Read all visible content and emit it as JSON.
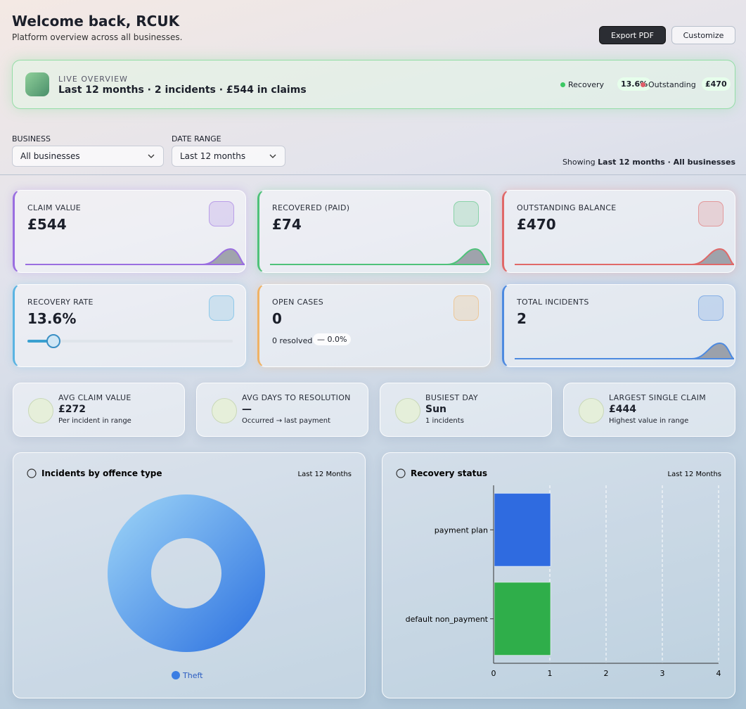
{
  "header": {
    "title": "Welcome back, RCUK",
    "subtitle": "Platform overview across all businesses.",
    "buttons": [
      "Export PDF",
      "Customize"
    ]
  },
  "overview": {
    "label": "LIVE OVERVIEW",
    "summary": "Last 12 months · 2 incidents · £544 in claims",
    "badges": [
      {
        "label": "Recovery",
        "value": "13.6%"
      },
      {
        "label": "Outstanding",
        "value": "£470"
      }
    ]
  },
  "filters": {
    "fields": [
      {
        "label": "BUSINESS",
        "value": "All businesses"
      },
      {
        "label": "DATE RANGE",
        "value": "Last 12 months"
      }
    ],
    "showing_prefix": "Showing",
    "showing_value": "Last 12 months · All businesses"
  },
  "kpis": [
    {
      "label": "CLAIM VALUE",
      "value": "£544"
    },
    {
      "label": "RECOVERED (PAID)",
      "value": "£74"
    },
    {
      "label": "OUTSTANDING BALANCE",
      "value": "£470"
    },
    {
      "label": "RECOVERY RATE",
      "value": "13.6%"
    },
    {
      "label": "OPEN CASES",
      "value": "0",
      "note": "0 resolved",
      "badge": "— 0.0%"
    },
    {
      "label": "TOTAL INCIDENTS",
      "value": "2"
    }
  ],
  "stats": [
    {
      "label": "AVG CLAIM VALUE",
      "value": "£272",
      "note": "Per incident in range"
    },
    {
      "label": "AVG DAYS TO RESOLUTION",
      "value": "—",
      "note": "Occurred → last payment"
    },
    {
      "label": "BUSIEST DAY",
      "value": "Sun",
      "note": "1 incidents"
    },
    {
      "label": "LARGEST SINGLE CLAIM",
      "value": "£444",
      "note": "Highest value in range"
    }
  ],
  "chart_data": [
    {
      "type": "pie",
      "title": "Incidents by offence type",
      "period": "Last 12 Months",
      "categories": [
        "Theft"
      ],
      "values": [
        2
      ],
      "colors": [
        "#3b7ee3"
      ]
    },
    {
      "type": "bar",
      "orientation": "horizontal",
      "title": "Recovery status",
      "period": "Last 12 Months",
      "categories": [
        "payment plan",
        "default non_payment"
      ],
      "values": [
        1,
        1
      ],
      "colors": [
        "#2f6be0",
        "#2fae4a"
      ],
      "xlim": [
        0,
        4
      ],
      "xticks": [
        0,
        1,
        2,
        3,
        4
      ],
      "grid": true
    }
  ]
}
